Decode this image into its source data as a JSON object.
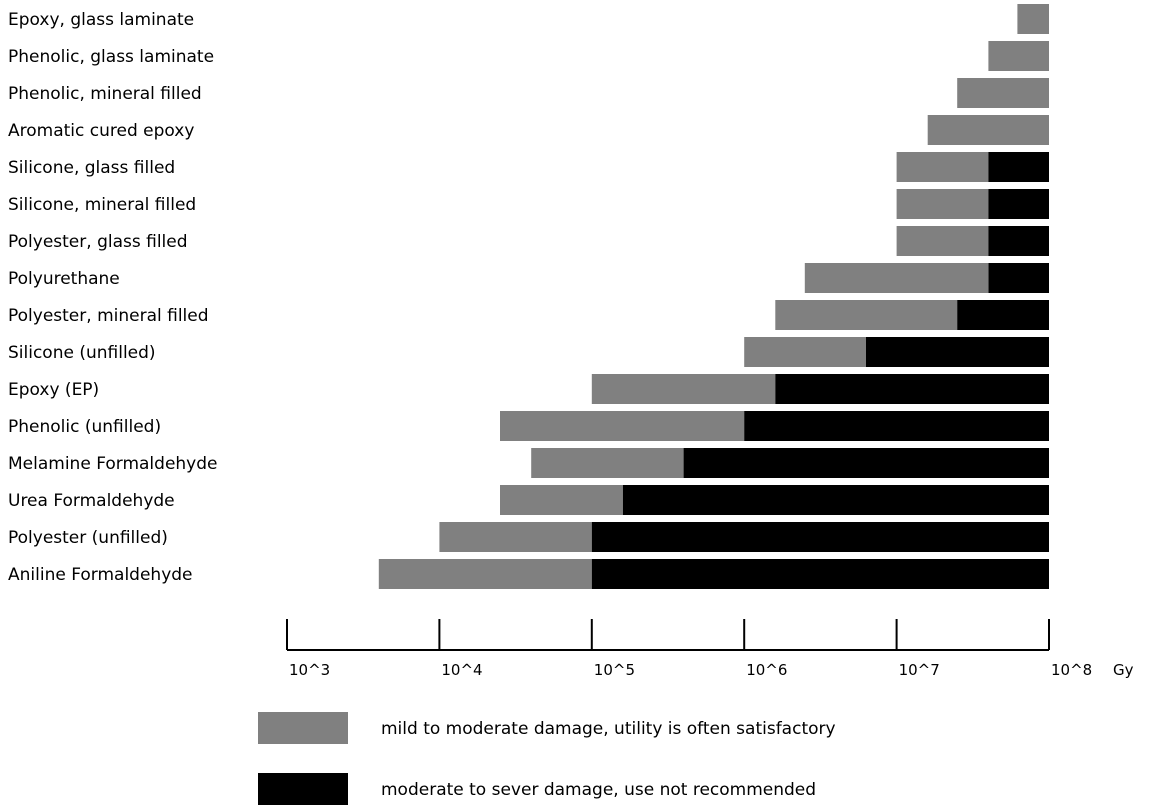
{
  "chart_data": {
    "type": "bar",
    "orientation": "horizontal",
    "stacked": true,
    "x_scale": "log",
    "xlim": [
      1000,
      100000000
    ],
    "xlabel": "Gy",
    "x_ticks": [
      1000,
      10000,
      100000,
      1000000,
      10000000,
      100000000
    ],
    "x_tick_labels": [
      "10^3",
      "10^4",
      "10^5",
      "10^6",
      "10^7",
      "10^8"
    ],
    "categories": [
      "Epoxy, glass laminate",
      "Phenolic, glass laminate",
      "Phenolic, mineral filled",
      "Aromatic cured epoxy",
      "Silicone, glass filled",
      "Silicone, mineral filled",
      "Polyester, glass filled",
      "Polyurethane",
      "Polyester, mineral filled",
      "Silicone (unfilled)",
      "Epoxy (EP)",
      "Phenolic (unfilled)",
      "Melamine Formaldehyde",
      "Urea Formaldehyde",
      "Polyester (unfilled)",
      "Aniline Formaldehyde"
    ],
    "series": [
      {
        "name": "mild to moderate damage, utility is often satisfactory",
        "color": "#808080",
        "ranges": [
          [
            62000000,
            100000000
          ],
          [
            40000000,
            100000000
          ],
          [
            25000000,
            100000000
          ],
          [
            16000000,
            100000000
          ],
          [
            10000000,
            40000000
          ],
          [
            10000000,
            40000000
          ],
          [
            10000000,
            40000000
          ],
          [
            2500000,
            40000000
          ],
          [
            1600000,
            25000000
          ],
          [
            1000000,
            6300000
          ],
          [
            100000,
            1600000
          ],
          [
            25000,
            1000000
          ],
          [
            40000,
            400000
          ],
          [
            25000,
            160000
          ],
          [
            10000,
            100000
          ],
          [
            4000,
            100000
          ]
        ]
      },
      {
        "name": "moderate to sever damage, use not recommended",
        "color": "#000000",
        "ranges": [
          null,
          null,
          null,
          null,
          [
            40000000,
            100000000
          ],
          [
            40000000,
            100000000
          ],
          [
            40000000,
            100000000
          ],
          [
            40000000,
            100000000
          ],
          [
            25000000,
            100000000
          ],
          [
            6300000,
            100000000
          ],
          [
            1600000,
            100000000
          ],
          [
            1000000,
            100000000
          ],
          [
            400000,
            100000000
          ],
          [
            160000,
            100000000
          ],
          [
            100000,
            100000000
          ],
          [
            100000,
            100000000
          ]
        ]
      }
    ],
    "legend": {
      "placement": "bottom",
      "entries": [
        {
          "label": "mild to moderate damage, utility is often satisfactory",
          "color": "#808080"
        },
        {
          "label": "moderate to sever damage, use not recommended",
          "color": "#000000"
        }
      ]
    },
    "grid": false
  }
}
